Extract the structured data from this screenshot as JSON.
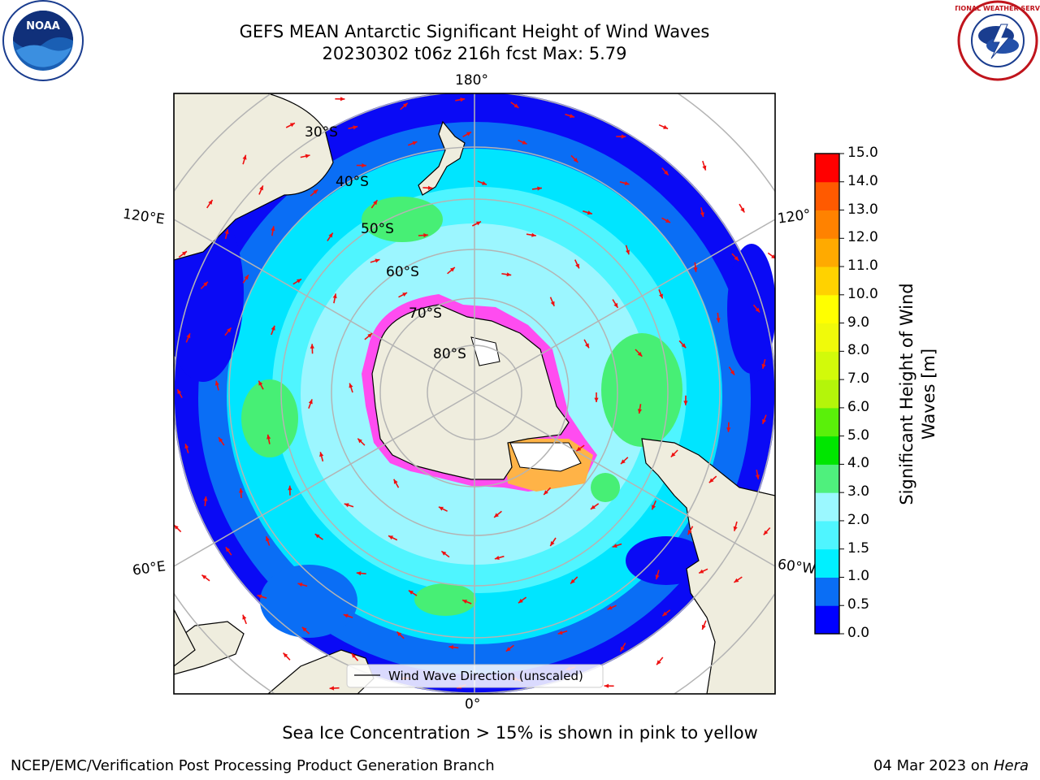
{
  "header": {
    "title_line1": "GEFS MEAN Antarctic Significant Height of Wind Waves",
    "title_line2": "20230302 t06z 216h fcst   Max: 5.79"
  },
  "map": {
    "projection": "south-polar-stereographic",
    "lon_labels": {
      "top": "180°",
      "bottom": "0°",
      "left_upper": "120°E",
      "left_lower": "60°E",
      "right_upper": "120°",
      "right_lower": "60°W"
    },
    "lat_labels": [
      "30°S",
      "40°S",
      "50°S",
      "60°S",
      "70°S",
      "80°S"
    ],
    "legend": "Wind Wave Direction (unscaled)",
    "colors": {
      "ocean_low": "#0a0af5",
      "ocean_mid": "#00e5ff",
      "ocean_light": "#9cf6ff",
      "green": "#47ef75",
      "land": "#efedde",
      "ice_pink": "#ff4cf0",
      "arrow": "#ee1010",
      "grid": "#b4b4b4"
    }
  },
  "colorbar": {
    "title_line1": "Significant Height of Wind",
    "title_line2": "Waves [m]",
    "ticks": [
      "0.0",
      "0.5",
      "1.0",
      "1.5",
      "2.0",
      "3.0",
      "4.0",
      "5.0",
      "6.0",
      "7.0",
      "8.0",
      "9.0",
      "10.0",
      "11.0",
      "12.0",
      "13.0",
      "14.0",
      "15.0"
    ],
    "colors": [
      "#0000ff",
      "#0a6ef5",
      "#00f0ff",
      "#4ff5ff",
      "#9bf8ff",
      "#4ff07d",
      "#00e600",
      "#5af00a",
      "#b4f50a",
      "#d2fa0a",
      "#f0fa0a",
      "#ffff00",
      "#ffd200",
      "#ffaa00",
      "#ff8200",
      "#ff5a00",
      "#ff0000"
    ]
  },
  "note": "Sea Ice Concentration > 15% is shown in pink to yellow",
  "footer": {
    "left": "NCEP/EMC/Verification Post Processing Product Generation Branch",
    "right_date": "04 Mar 2023 on ",
    "right_host": "Hera"
  },
  "logos": {
    "noaa": "NOAA",
    "nws": "NATIONAL WEATHER SERVICE"
  }
}
